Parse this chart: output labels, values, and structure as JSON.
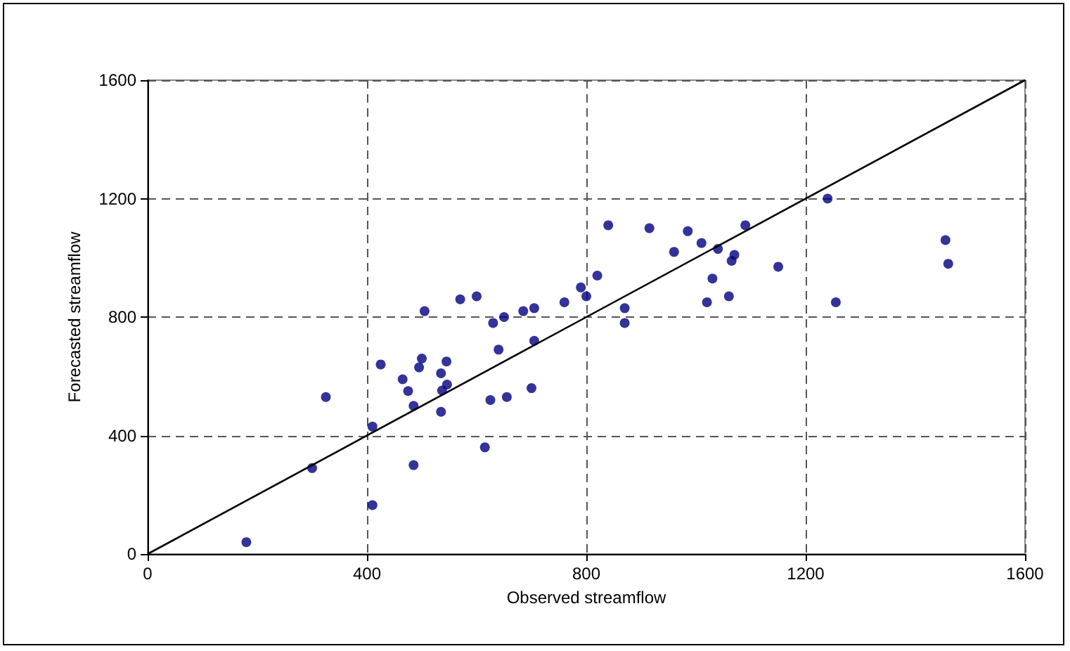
{
  "chart_data": {
    "type": "scatter",
    "xlabel": "Observed streamflow",
    "ylabel": "Forecasted streamflow",
    "xlim": [
      0,
      1600
    ],
    "xticks": [
      0,
      400,
      800,
      1200,
      1600
    ],
    "ylim": [
      0,
      1600
    ],
    "yticks": [
      0,
      400,
      800,
      1200,
      1600
    ],
    "grid": true,
    "marker": "circle",
    "series": [
      {
        "color": "#000080",
        "x": [
          180,
          300,
          325,
          410,
          410,
          425,
          465,
          475,
          485,
          485,
          495,
          500,
          505,
          535,
          535,
          537,
          545,
          546,
          570,
          600,
          615,
          625,
          630,
          640,
          650,
          655,
          685,
          700,
          705,
          705,
          760,
          790,
          800,
          820,
          840,
          870,
          870,
          915,
          960,
          985,
          1010,
          1020,
          1030,
          1040,
          1060,
          1065,
          1070,
          1090,
          1150,
          1240,
          1255,
          1455,
          1460
        ],
        "values": [
          40,
          290,
          530,
          430,
          165,
          640,
          590,
          550,
          500,
          300,
          630,
          660,
          820,
          610,
          480,
          552,
          650,
          572,
          860,
          870,
          360,
          520,
          780,
          690,
          800,
          530,
          820,
          560,
          720,
          830,
          850,
          900,
          870,
          940,
          1110,
          830,
          780,
          1100,
          1020,
          1090,
          1050,
          850,
          930,
          1030,
          870,
          990,
          1010,
          1110,
          970,
          1200,
          850,
          1060,
          980
        ]
      },
      {
        "type": "line",
        "color": "#000000",
        "marker": "none",
        "line_style": "solid",
        "x": [
          0,
          1600
        ],
        "values": [
          0,
          1600
        ]
      }
    ]
  }
}
